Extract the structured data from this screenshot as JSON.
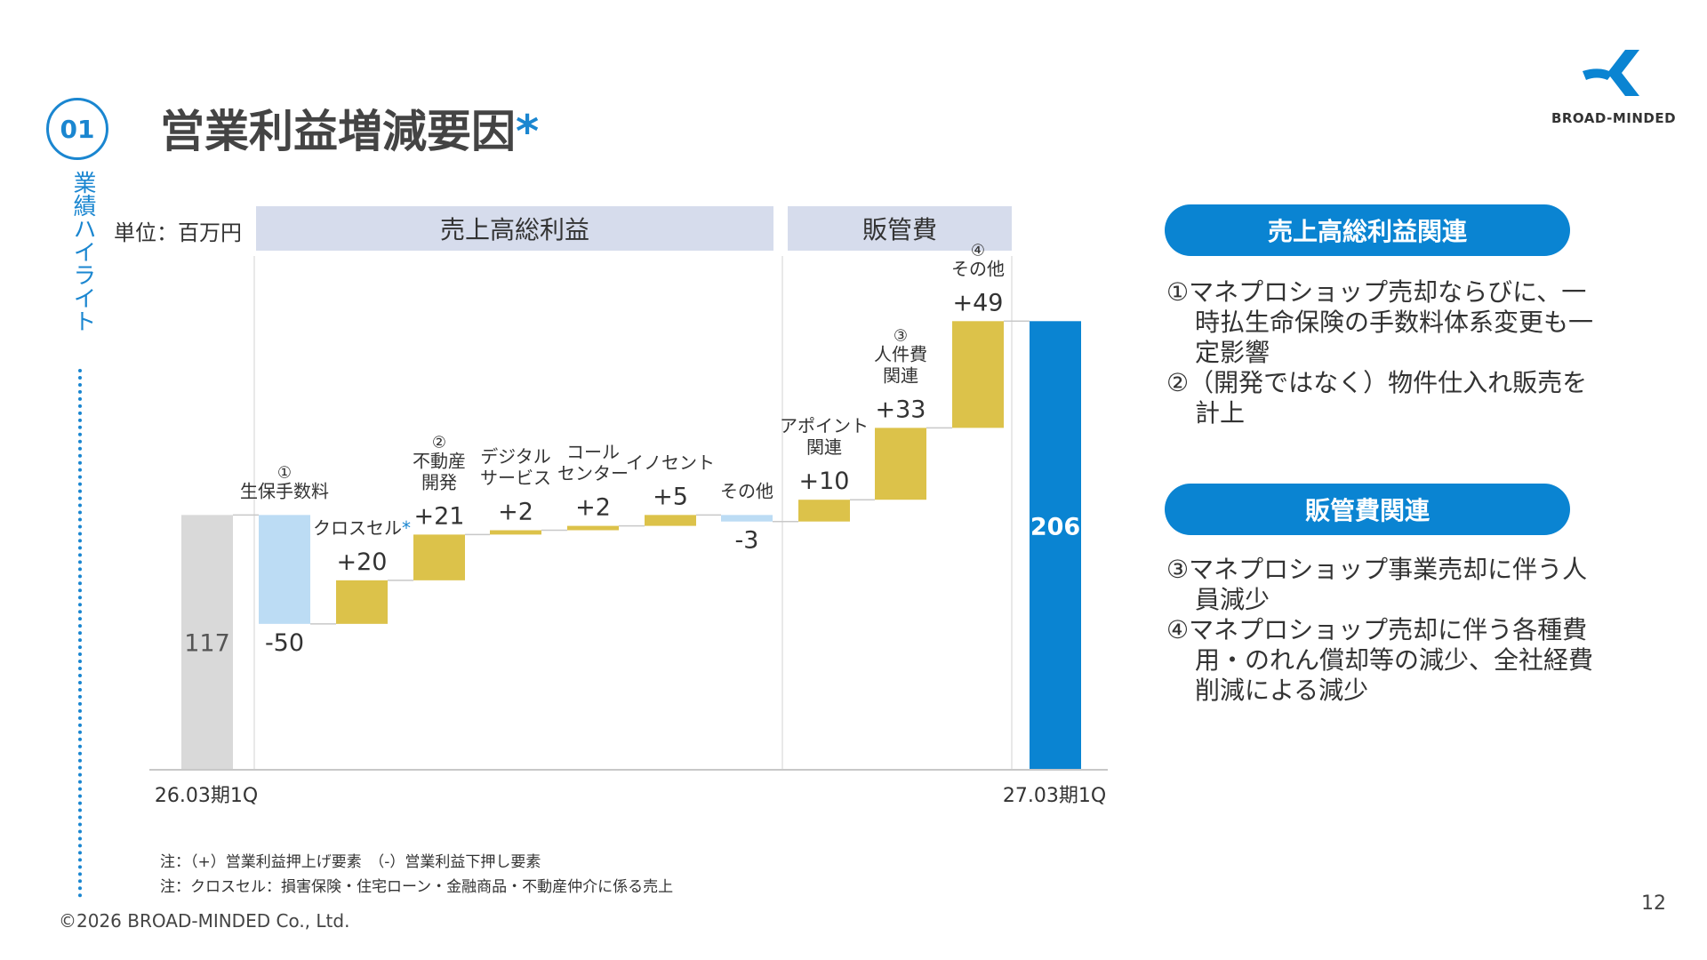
{
  "section": {
    "number": "01",
    "side_label": "業績ハイライト"
  },
  "title": {
    "text": "営業利益増減要因",
    "asterisk": "*"
  },
  "brand": {
    "logo_text": "BROAD-MINDED",
    "accent": "#1a86d0"
  },
  "chart_data": {
    "type": "waterfall",
    "unit_label": "単位：百万円",
    "groups": [
      {
        "label": "売上高総利益",
        "steps": [
          1,
          2,
          3,
          4,
          5,
          6,
          7
        ]
      },
      {
        "label": "販管費",
        "steps": [
          8,
          9,
          10
        ]
      }
    ],
    "start": {
      "label": "26.03期1Q",
      "value": 117
    },
    "end": {
      "label": "27.03期1Q",
      "value": 206
    },
    "steps": [
      {
        "label": "生保手数料",
        "marker": "①",
        "value": -50,
        "display": "-50"
      },
      {
        "label": "クロスセル",
        "marker": "*",
        "value": 20,
        "display": "+20"
      },
      {
        "label": "不動産\n開発",
        "marker": "②",
        "value": 21,
        "display": "+21"
      },
      {
        "label": "デジタル\nサービス",
        "marker": "",
        "value": 2,
        "display": "+2"
      },
      {
        "label": "コール\nセンター",
        "marker": "",
        "value": 2,
        "display": "+2"
      },
      {
        "label": "イノセント",
        "marker": "",
        "value": 5,
        "display": "+5"
      },
      {
        "label": "その他",
        "marker": "",
        "value": -3,
        "display": "-3"
      },
      {
        "label": "アポイント\n関連",
        "marker": "",
        "value": 10,
        "display": "+10"
      },
      {
        "label": "人件費\n関連",
        "marker": "③",
        "value": 33,
        "display": "+33"
      },
      {
        "label": "その他",
        "marker": "④",
        "value": 49,
        "display": "+49"
      }
    ],
    "colors": {
      "start": "#d9d9d9",
      "end": "#0a84d2",
      "increase": "#dcc24a",
      "decrease": "#bcdcf4"
    }
  },
  "panel": {
    "gross_profit": {
      "title": "売上高総利益関連",
      "items": [
        "①マネプロショップ売却ならびに、一時払生命保険の手数料体系変更も一定影響",
        "②（開発ではなく）物件仕入れ販売を計上"
      ]
    },
    "sga": {
      "title": "販管費関連",
      "items": [
        "③マネプロショップ事業売却に伴う人員減少",
        "④マネプロショップ売却に伴う各種費用・のれん償却等の減少、全社経費削減による減少"
      ]
    }
  },
  "notes": [
    "注：（+）営業利益押上げ要素　（-）営業利益下押し要素",
    "注：クロスセル：損害保険・住宅ローン・金融商品・不動産仲介に係る売上"
  ],
  "copyright": "©2026 BROAD-MINDED Co., Ltd.",
  "page_number": "12"
}
